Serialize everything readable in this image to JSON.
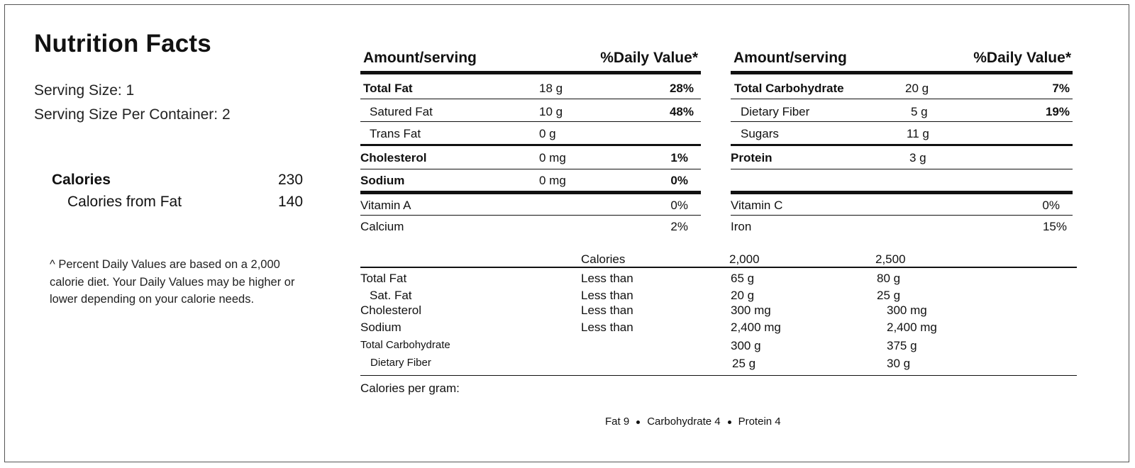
{
  "title": "Nutrition Facts",
  "serving_size": "Serving Size: 1",
  "serving_per_container": "Serving Size Per Container: 2",
  "calories": {
    "label": "Calories",
    "value": "230"
  },
  "calories_from_fat": {
    "label": "Calories from Fat",
    "value": "140"
  },
  "footnote": "^ Percent Daily Values are based on a 2,000 calorie diet. Your Daily Values may be higher or lower depending on your calorie needs.",
  "left_panel": {
    "header_amount": "Amount/serving",
    "header_dv": "%Daily Value*",
    "rows": [
      {
        "name": "Total Fat",
        "amount": "18 g",
        "dv": "28%"
      },
      {
        "name": "Satured Fat",
        "amount": "10 g",
        "dv": "48%"
      },
      {
        "name": "Trans Fat",
        "amount": "0 g",
        "dv": ""
      },
      {
        "name": "Cholesterol",
        "amount": "0 mg",
        "dv": "1%"
      },
      {
        "name": "Sodium",
        "amount": "0 mg",
        "dv": "0%"
      }
    ],
    "vitamins": [
      {
        "name": "Vitamin A",
        "dv": "0%"
      },
      {
        "name": "Calcium",
        "dv": "2%"
      }
    ]
  },
  "right_panel": {
    "header_amount": "Amount/serving",
    "header_dv": "%Daily Value*",
    "rows": [
      {
        "name": "Total Carbohydrate",
        "amount": "20 g",
        "dv": "7%"
      },
      {
        "name": "Dietary Fiber",
        "amount": "5 g",
        "dv": "19%"
      },
      {
        "name": "Sugars",
        "amount": "11 g",
        "dv": ""
      },
      {
        "name": "Protein",
        "amount": "3 g",
        "dv": ""
      }
    ],
    "vitamins": [
      {
        "name": "Vitamin C",
        "dv": "0%"
      },
      {
        "name": "Iron",
        "dv": "15%"
      }
    ]
  },
  "daily_values": {
    "header": [
      "Calories",
      "2,000",
      "2,500"
    ],
    "rows": [
      {
        "name": "Total Fat",
        "qual": "Less than",
        "v1": "65 g",
        "v2": "80 g"
      },
      {
        "name": "Sat. Fat",
        "qual": "Less than",
        "v1": "20 g",
        "v2": "25 g"
      },
      {
        "name": "Cholesterol",
        "qual": "Less than",
        "v1": "300 mg",
        "v2": "300 mg"
      },
      {
        "name": "Sodium",
        "qual": "Less than",
        "v1": "2,400 mg",
        "v2": "2,400 mg"
      },
      {
        "name": "Total Carbohydrate",
        "qual": "",
        "v1": "300 g",
        "v2": "375 g"
      },
      {
        "name": "Dietary Fiber",
        "qual": "",
        "v1": "25 g",
        "v2": "30 g"
      }
    ]
  },
  "calories_per_gram": "Calories per gram:",
  "factors": [
    "Fat 9",
    "Carbohydrate 4",
    "Protein 4"
  ]
}
